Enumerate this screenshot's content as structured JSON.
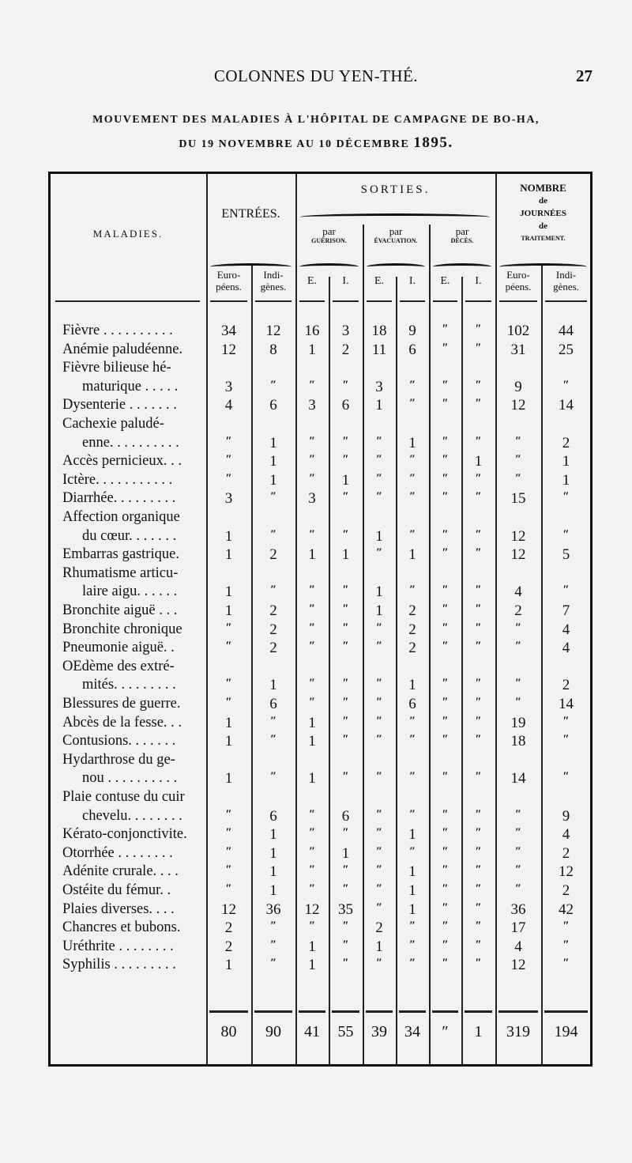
{
  "running_head": {
    "title": "COLONNES DU YEN-THÉ.",
    "page_number": "27"
  },
  "heading": {
    "line1": "MOUVEMENT DES MALADIES À L'HÔPITAL DE CAMPAGNE DE BO-HA,",
    "line2": "DU 19 NOVEMBRE AU 10 DÉCEMBRE",
    "year": "1895."
  },
  "table": {
    "headers": {
      "maladies": "MALADIES.",
      "entrees": "ENTRÉES.",
      "sorties": "SORTIES.",
      "par_guerison": [
        "par",
        "GUÉRISON."
      ],
      "par_evacuation": [
        "par",
        "ÉVACUATION."
      ],
      "par_deces": [
        "par",
        "DÉCÈS."
      ],
      "journees": [
        "NOMBRE",
        "de",
        "JOURNÉES",
        "de",
        "TRAITEMENT."
      ],
      "europeens": [
        "Euro-",
        "péens."
      ],
      "indigenes": [
        "Indi-",
        "gènes."
      ],
      "e": "E.",
      "i": "I."
    },
    "rows": [
      {
        "label": [
          "Fièvre . . . . . . . . . ."
        ],
        "values": [
          "34",
          "12",
          "16",
          "3",
          "18",
          "9",
          "″",
          "″",
          "102",
          "44"
        ]
      },
      {
        "label": [
          "Anémie paludéenne."
        ],
        "values": [
          "12",
          "8",
          "1",
          "2",
          "11",
          "6",
          "″",
          "″",
          "31",
          "25"
        ]
      },
      {
        "label": [
          "Fièvre bilieuse hé-",
          "maturique . . . . ."
        ],
        "values": [
          "3",
          "″",
          "″",
          "″",
          "3",
          "″",
          "″",
          "″",
          "9",
          "″"
        ]
      },
      {
        "label": [
          "Dysenterie . . . . . . ."
        ],
        "values": [
          "4",
          "6",
          "3",
          "6",
          "1",
          "″",
          "″",
          "″",
          "12",
          "14"
        ]
      },
      {
        "label": [
          "Cachexie paludé-",
          "enne. . . . . . . . . ."
        ],
        "values": [
          "″",
          "1",
          "″",
          "″",
          "″",
          "1",
          "″",
          "″",
          "″",
          "2"
        ]
      },
      {
        "label": [
          "Accès pernicieux. . ."
        ],
        "values": [
          "″",
          "1",
          "″",
          "″",
          "″",
          "″",
          "″",
          "1",
          "″",
          "1"
        ]
      },
      {
        "label": [
          "Ictère. . . . . . . . . . ."
        ],
        "values": [
          "″",
          "1",
          "″",
          "1",
          "″",
          "″",
          "″",
          "″",
          "″",
          "1"
        ]
      },
      {
        "label": [
          "Diarrhée. . . . . . . . ."
        ],
        "values": [
          "3",
          "″",
          "3",
          "″",
          "″",
          "″",
          "″",
          "″",
          "15",
          "″"
        ]
      },
      {
        "label": [
          "Affection organique",
          "du cœur. . . . . . ."
        ],
        "values": [
          "1",
          "″",
          "″",
          "″",
          "1",
          "″",
          "″",
          "″",
          "12",
          "″"
        ]
      },
      {
        "label": [
          "Embarras gastrique."
        ],
        "values": [
          "1",
          "2",
          "1",
          "1",
          "″",
          "1",
          "″",
          "″",
          "12",
          "5"
        ]
      },
      {
        "label": [
          "Rhumatisme articu-",
          "laire aigu. . . . . ."
        ],
        "values": [
          "1",
          "″",
          "″",
          "″",
          "1",
          "″",
          "″",
          "″",
          "4",
          "″"
        ]
      },
      {
        "label": [
          "Bronchite aiguë . . ."
        ],
        "values": [
          "1",
          "2",
          "″",
          "″",
          "1",
          "2",
          "″",
          "″",
          "2",
          "7"
        ]
      },
      {
        "label": [
          "Bronchite chronique"
        ],
        "values": [
          "″",
          "2",
          "″",
          "″",
          "″",
          "2",
          "″",
          "″",
          "″",
          "4"
        ]
      },
      {
        "label": [
          "Pneumonie aiguë. ."
        ],
        "values": [
          "″",
          "2",
          "″",
          "″",
          "″",
          "2",
          "″",
          "″",
          "″",
          "4"
        ]
      },
      {
        "label": [
          "OEdème des extré-",
          "mités. . . . . . . . ."
        ],
        "values": [
          "″",
          "1",
          "″",
          "″",
          "″",
          "1",
          "″",
          "″",
          "″",
          "2"
        ]
      },
      {
        "label": [
          "Blessures de guerre."
        ],
        "values": [
          "″",
          "6",
          "″",
          "″",
          "″",
          "6",
          "″",
          "″",
          "″",
          "14"
        ]
      },
      {
        "label": [
          "Abcès de la fesse. . ."
        ],
        "values": [
          "1",
          "″",
          "1",
          "″",
          "″",
          "″",
          "″",
          "″",
          "19",
          "″"
        ]
      },
      {
        "label": [
          "Contusions. . . . . . ."
        ],
        "values": [
          "1",
          "″",
          "1",
          "″",
          "″",
          "″",
          "″",
          "″",
          "18",
          "″"
        ]
      },
      {
        "label": [
          "Hydarthrose du ge-",
          "nou . . . . . . . . . ."
        ],
        "values": [
          "1",
          "″",
          "1",
          "″",
          "″",
          "″",
          "″",
          "″",
          "14",
          "″"
        ]
      },
      {
        "label": [
          "Plaie contuse du cuir",
          "chevelu. . . . . . . ."
        ],
        "values": [
          "″",
          "6",
          "″",
          "6",
          "″",
          "″",
          "″",
          "″",
          "″",
          "9"
        ]
      },
      {
        "label": [
          "Kérato-conjonctivite."
        ],
        "values": [
          "″",
          "1",
          "″",
          "″",
          "″",
          "1",
          "″",
          "″",
          "″",
          "4"
        ]
      },
      {
        "label": [
          "Otorrhée . . . . . . . ."
        ],
        "values": [
          "″",
          "1",
          "″",
          "1",
          "″",
          "″",
          "″",
          "″",
          "″",
          "2"
        ]
      },
      {
        "label": [
          "Adénite crurale. . . ."
        ],
        "values": [
          "″",
          "1",
          "″",
          "″",
          "″",
          "1",
          "″",
          "″",
          "″",
          "12"
        ]
      },
      {
        "label": [
          "Ostéite du fémur. ."
        ],
        "values": [
          "″",
          "1",
          "″",
          "″",
          "″",
          "1",
          "″",
          "″",
          "″",
          "2"
        ]
      },
      {
        "label": [
          "Plaies diverses. . . ."
        ],
        "values": [
          "12",
          "36",
          "12",
          "35",
          "″",
          "1",
          "″",
          "″",
          "36",
          "42"
        ]
      },
      {
        "label": [
          "Chancres et bubons."
        ],
        "values": [
          "2",
          "″",
          "″",
          "″",
          "2",
          "″",
          "″",
          "″",
          "17",
          "″"
        ]
      },
      {
        "label": [
          "Uréthrite . . . . . . . ."
        ],
        "values": [
          "2",
          "″",
          "1",
          "″",
          "1",
          "″",
          "″",
          "″",
          "4",
          "″"
        ]
      },
      {
        "label": [
          "Syphilis . . . . . . . . ."
        ],
        "values": [
          "1",
          "″",
          "1",
          "″",
          "″",
          "″",
          "″",
          "″",
          "12",
          "″"
        ]
      }
    ],
    "totals": [
      "80",
      "90",
      "41",
      "55",
      "39",
      "34",
      "″",
      "1",
      "319",
      "194"
    ]
  }
}
